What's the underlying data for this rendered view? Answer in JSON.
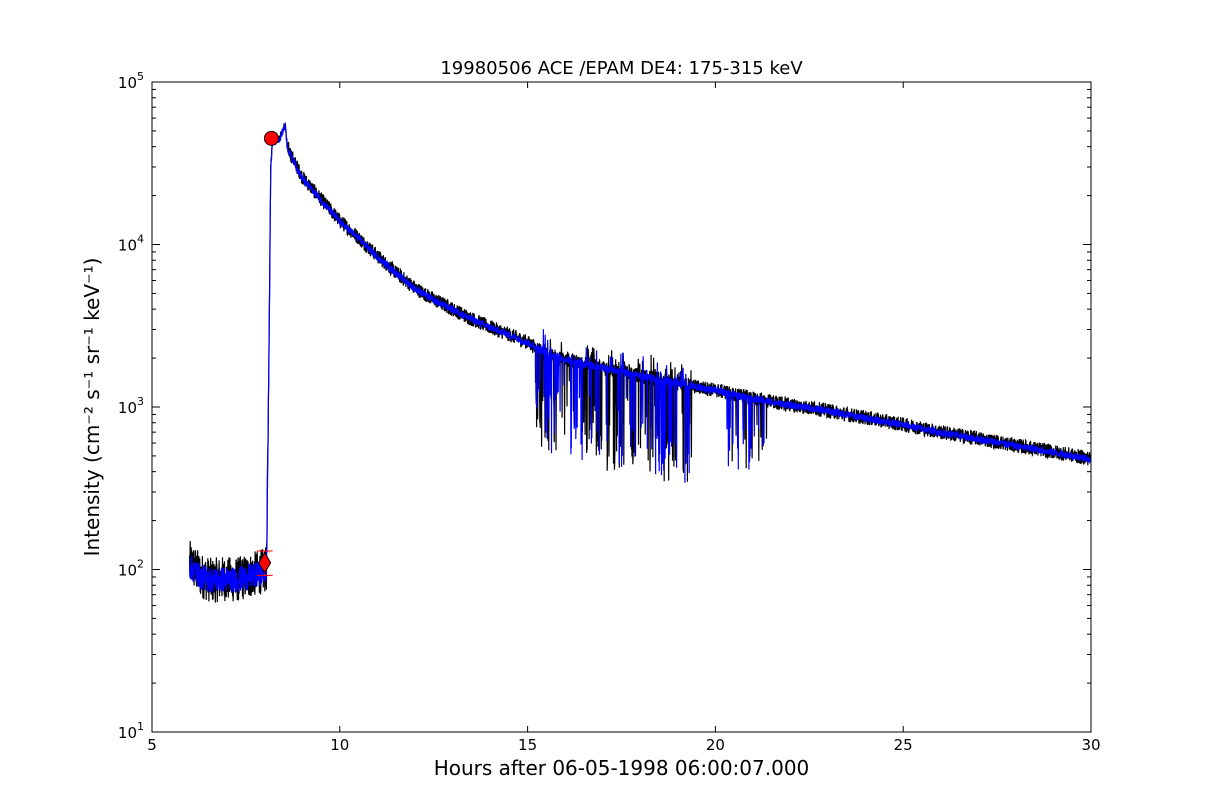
{
  "chart_data": {
    "type": "line",
    "title": "19980506 ACE /EPAM DE4: 175-315 keV",
    "xlabel": "Hours after 06-05-1998 06:00:07.000",
    "ylabel": "Intensity (cm⁻² s⁻¹ sr⁻¹ keV⁻¹)",
    "xlim": [
      5,
      30
    ],
    "ylim": [
      10,
      100000
    ],
    "yscale": "log",
    "grid": false,
    "x_ticks": [
      5,
      10,
      15,
      20,
      25,
      30
    ],
    "x_tick_labels": [
      "5",
      "10",
      "15",
      "20",
      "25",
      "30"
    ],
    "y_ticks": [
      10,
      100,
      1000,
      10000,
      100000
    ],
    "y_tick_labels": [
      {
        "base": "10",
        "exp": "1"
      },
      {
        "base": "10",
        "exp": "2"
      },
      {
        "base": "10",
        "exp": "3"
      },
      {
        "base": "10",
        "exp": "4"
      },
      {
        "base": "10",
        "exp": "5"
      }
    ],
    "series": [
      {
        "color": "#000000",
        "style": "raw",
        "x": [
          6.0,
          6.3,
          6.6,
          6.9,
          7.2,
          7.5,
          7.8,
          8.05,
          8.12,
          8.16,
          8.2,
          8.25,
          8.3,
          8.4,
          8.5,
          8.55,
          8.6,
          8.8,
          9.0,
          9.5,
          10.0,
          10.5,
          11.0,
          11.5,
          12.0,
          12.5,
          13.0,
          13.5,
          14.0,
          14.5,
          15.0,
          15.5,
          16.0,
          16.5,
          17.0,
          17.5,
          18.0,
          18.5,
          19.0,
          19.5,
          20.0,
          20.5,
          21.0,
          21.5,
          22.0,
          22.5,
          23.0,
          23.5,
          24.0,
          24.5,
          25.0,
          25.5,
          26.0,
          26.5,
          27.0,
          27.5,
          28.0,
          28.5,
          29.0,
          29.5,
          30.0
        ],
        "y": [
          110,
          92,
          85,
          88,
          86,
          90,
          95,
          100,
          3000,
          30000,
          42000,
          45000,
          44000,
          45000,
          52000,
          55000,
          40000,
          32000,
          26000,
          19000,
          14000,
          11000,
          8500,
          6700,
          5400,
          4600,
          4000,
          3500,
          3100,
          2800,
          2500,
          2100,
          1950,
          1850,
          1750,
          1650,
          1550,
          1480,
          1400,
          1330,
          1270,
          1200,
          1130,
          1080,
          1030,
          990,
          950,
          900,
          860,
          820,
          780,
          740,
          700,
          670,
          640,
          610,
          580,
          555,
          530,
          505,
          480
        ]
      },
      {
        "color": "#0000ff",
        "style": "smoothed",
        "x": [
          6.0,
          6.3,
          6.6,
          6.9,
          7.2,
          7.5,
          7.8,
          8.05,
          8.12,
          8.16,
          8.2,
          8.25,
          8.3,
          8.4,
          8.5,
          8.55,
          8.6,
          8.8,
          9.0,
          9.5,
          10.0,
          10.5,
          11.0,
          11.5,
          12.0,
          12.5,
          13.0,
          13.5,
          14.0,
          14.5,
          15.0,
          15.5,
          16.0,
          16.5,
          17.0,
          17.5,
          18.0,
          18.5,
          19.0,
          19.5,
          20.0,
          20.5,
          21.0,
          21.5,
          22.0,
          22.5,
          23.0,
          23.5,
          24.0,
          24.5,
          25.0,
          25.5,
          26.0,
          26.5,
          27.0,
          27.5,
          28.0,
          28.5,
          29.0,
          29.5,
          30.0
        ],
        "y": [
          105,
          90,
          86,
          87,
          86,
          89,
          93,
          98,
          2800,
          29000,
          41000,
          44500,
          43500,
          44500,
          51000,
          54000,
          39500,
          31500,
          25500,
          18800,
          13800,
          10900,
          8400,
          6650,
          5350,
          4550,
          3980,
          3480,
          3080,
          2790,
          2480,
          2150,
          1960,
          1840,
          1740,
          1640,
          1545,
          1475,
          1395,
          1325,
          1265,
          1195,
          1125,
          1075,
          1025,
          985,
          945,
          895,
          855,
          815,
          775,
          735,
          695,
          665,
          635,
          605,
          575,
          550,
          525,
          500,
          478
        ]
      }
    ],
    "markers": [
      {
        "shape": "circle",
        "color": "#ff0000",
        "x": 8.18,
        "y": 45000
      },
      {
        "shape": "diamond",
        "color": "#ff0000",
        "x": 8.0,
        "y": 110,
        "errorbar": [
          92,
          130
        ]
      }
    ]
  }
}
